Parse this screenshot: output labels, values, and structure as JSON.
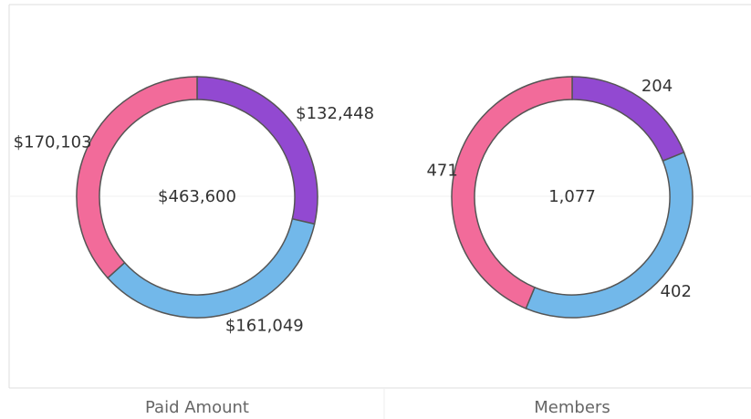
{
  "chart_data": [
    {
      "type": "donut",
      "title": "Paid Amount",
      "center_label": "$463,600",
      "values": [
        132448,
        161049,
        170103
      ],
      "value_labels": [
        "$132,448",
        "$161,049",
        "$170,103"
      ],
      "colors": [
        "#9249d1",
        "#72b8ea",
        "#f26b9a"
      ]
    },
    {
      "type": "donut",
      "title": "Members",
      "center_label": "1,077",
      "values": [
        204,
        402,
        471
      ],
      "value_labels": [
        "204",
        "402",
        "471"
      ],
      "colors": [
        "#9249d1",
        "#72b8ea",
        "#f26b9a"
      ]
    }
  ]
}
